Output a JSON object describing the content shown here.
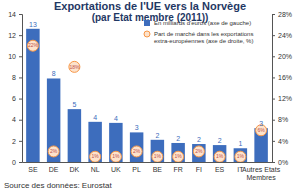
{
  "chart_data": {
    "type": "bar",
    "title": "Exportations de l'UE vers la Norvège",
    "subtitle": "(par Etat membre (2011))",
    "source": "Source des données: Eurostat",
    "categories": [
      "SE",
      "DE",
      "DK",
      "NL",
      "UK",
      "PL",
      "BE",
      "FR",
      "FI",
      "ES",
      "IT",
      "Autres Etats Membres"
    ],
    "series": [
      {
        "name": "En milliards d'euros (axe de gauche)",
        "type": "bar",
        "color": "#3d6dbd",
        "values": [
          12.6,
          7.9,
          5.0,
          3.8,
          3.7,
          2.8,
          2.1,
          1.8,
          1.7,
          1.6,
          1.3,
          3.2
        ],
        "value_labels": [
          "13",
          "8",
          "5",
          "4",
          "4",
          "3",
          "2",
          "2",
          "2",
          "2",
          "1",
          "3"
        ]
      },
      {
        "name": "Part de marché dans les exportations extra-européennes (axe de droite, %)",
        "type": "scatter",
        "axis": "y2",
        "marker": "circle",
        "color": "#f79646",
        "values": [
          22,
          2,
          18,
          1,
          1,
          2,
          1,
          1,
          2,
          1,
          1,
          6
        ],
        "value_labels": [
          "22%",
          "2%",
          "18%",
          "1%",
          "1%",
          "2%",
          "1%",
          "1%",
          "2%",
          "1%",
          "1%",
          "6%"
        ]
      }
    ],
    "ylim": [
      0,
      14
    ],
    "yticks": [
      0,
      2,
      4,
      6,
      8,
      10,
      12,
      14
    ],
    "y2lim": [
      0,
      28
    ],
    "y2ticks": [
      {
        "value": 0,
        "label": "0%"
      },
      {
        "value": 4,
        "label": "4%"
      },
      {
        "value": 8,
        "label": "8%"
      },
      {
        "value": 12,
        "label": "12%"
      },
      {
        "value": 16,
        "label": "16%"
      },
      {
        "value": 20,
        "label": "20%"
      },
      {
        "value": 24,
        "label": "24%"
      },
      {
        "value": 28,
        "label": "28%"
      }
    ],
    "grid": false,
    "legend": "upper-right",
    "data_labels": true
  }
}
